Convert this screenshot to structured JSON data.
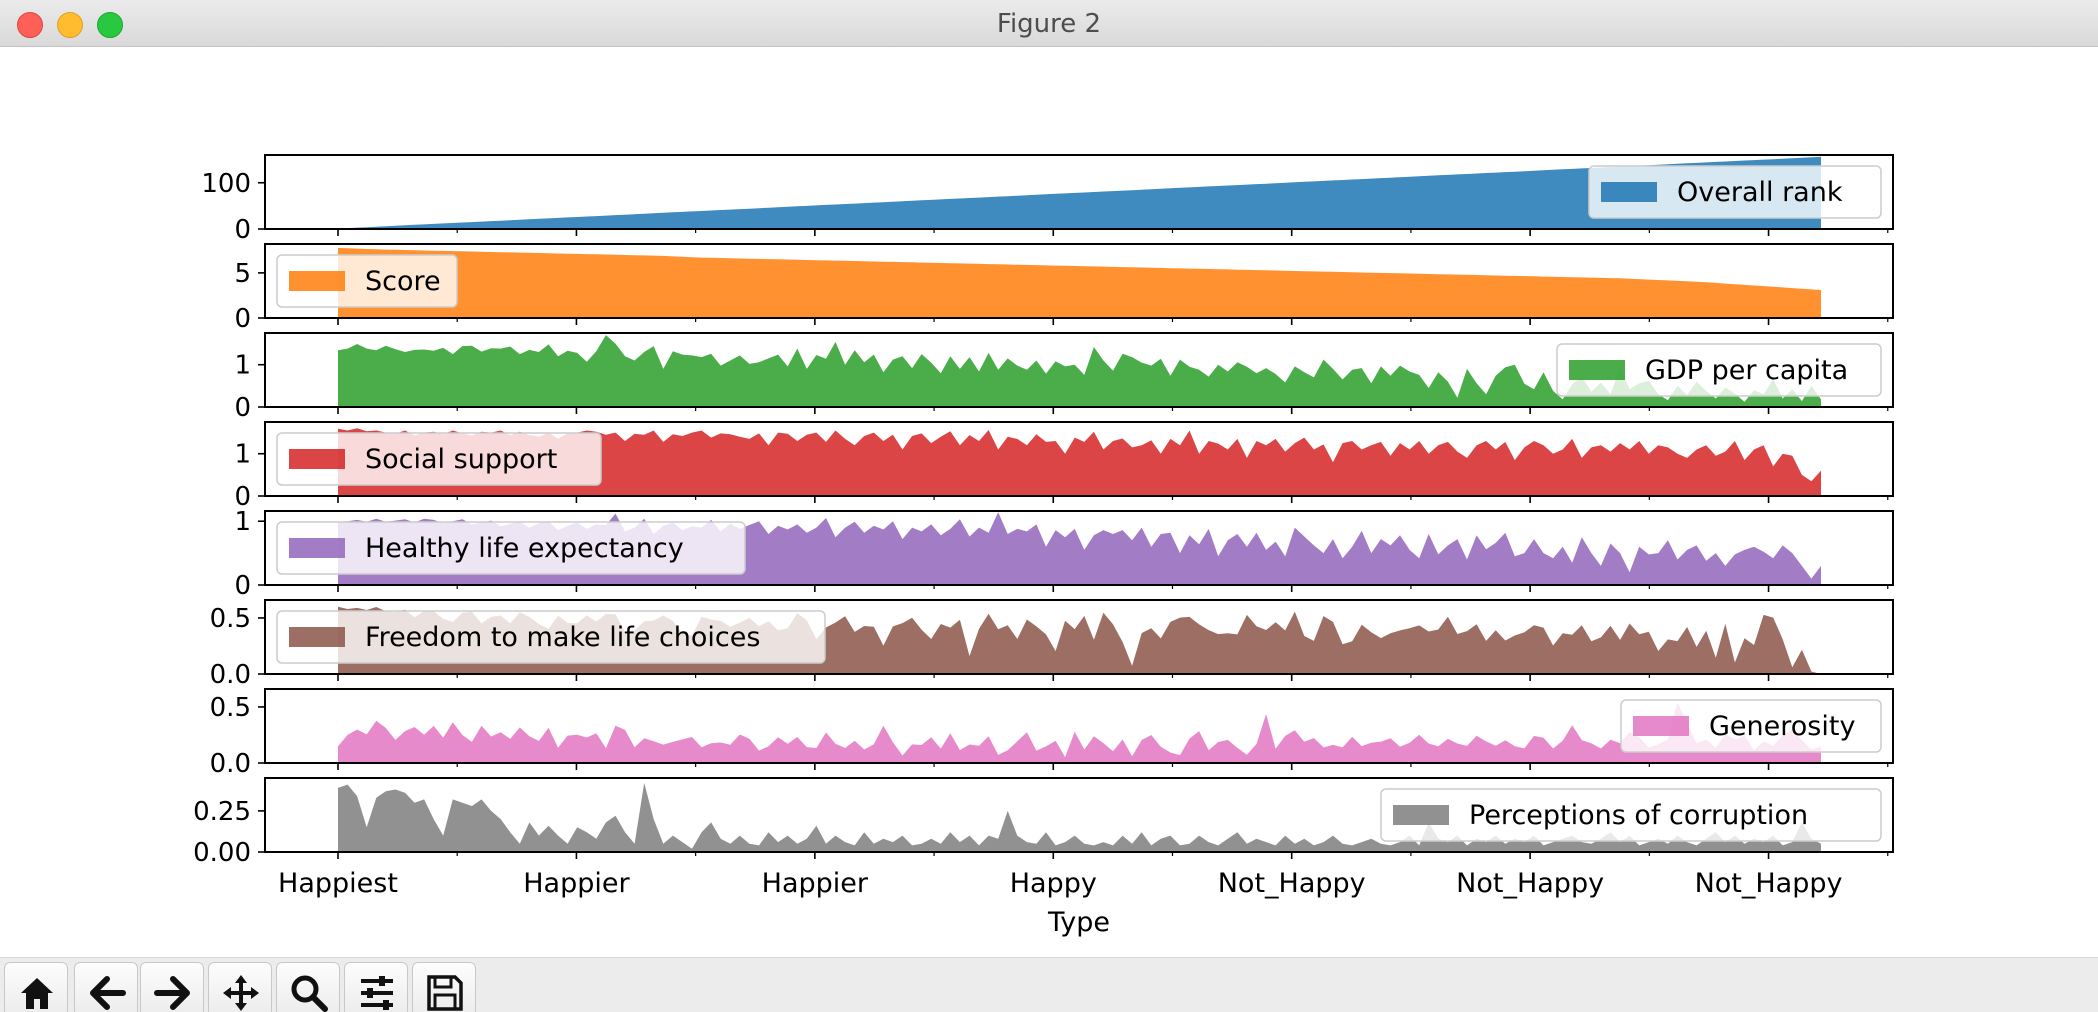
{
  "window": {
    "title": "Figure 2"
  },
  "toolbar": {
    "buttons": [
      {
        "name": "home-button",
        "icon": "home-icon"
      },
      {
        "name": "back-button",
        "icon": "arrow-left-icon"
      },
      {
        "name": "forward-button",
        "icon": "arrow-right-icon"
      },
      {
        "name": "pan-button",
        "icon": "move-icon"
      },
      {
        "name": "zoom-button",
        "icon": "magnifier-icon"
      },
      {
        "name": "configure-subplots-button",
        "icon": "sliders-icon"
      },
      {
        "name": "save-button",
        "icon": "floppy-disk-icon"
      }
    ]
  },
  "chart_data": {
    "type": "area",
    "xlabel": "Type",
    "x_tick_labels": [
      "Happiest",
      "Happier",
      "Happier",
      "Happy",
      "Not_Happy",
      "Not_Happy",
      "Not_Happy"
    ],
    "n_points": 156,
    "grid": false,
    "subplots": [
      {
        "name": "Overall rank",
        "color": "#1f77b4",
        "ylim": [
          0,
          160
        ],
        "yticks": [
          {
            "v": 0,
            "label": "0"
          },
          {
            "v": 100,
            "label": "100"
          }
        ],
        "legend": "right",
        "values": [
          1,
          32,
          63,
          94,
          125,
          156
        ]
      },
      {
        "name": "Score",
        "color": "#ff7f0e",
        "ylim": [
          0,
          8.2
        ],
        "yticks": [
          {
            "v": 0,
            "label": "0"
          },
          {
            "v": 5,
            "label": "5"
          }
        ],
        "legend": "left",
        "values": [
          7.77,
          7.6,
          7.5,
          7.4,
          7.3,
          7.2,
          7.1,
          7.0,
          6.9,
          6.7,
          6.6,
          6.5,
          6.4,
          6.3,
          6.2,
          6.1,
          6.0,
          5.9,
          5.8,
          5.7,
          5.6,
          5.5,
          5.4,
          5.3,
          5.2,
          5.1,
          5.0,
          4.9,
          4.8,
          4.7,
          4.6,
          4.5,
          4.4,
          4.2,
          4.0,
          3.7,
          3.4,
          3.1
        ]
      },
      {
        "name": "GDP per capita",
        "color": "#2ca02c",
        "ylim": [
          0,
          1.75
        ],
        "yticks": [
          {
            "v": 0,
            "label": "0"
          },
          {
            "v": 1,
            "label": "1"
          }
        ],
        "legend": "right",
        "values": [
          1.34,
          1.38,
          1.49,
          1.38,
          1.34,
          1.45,
          1.37,
          1.3,
          1.35,
          1.36,
          1.33,
          1.4,
          1.25,
          1.44,
          1.45,
          1.31,
          1.39,
          1.38,
          1.43,
          1.25,
          1.35,
          1.3,
          1.48,
          1.2,
          1.33,
          1.28,
          1.07,
          1.32,
          1.7,
          1.5,
          1.2,
          1.1,
          1.3,
          1.44,
          0.9,
          1.32,
          1.24,
          1.22,
          1.18,
          1.26,
          0.98,
          1.1,
          1.22,
          1.02,
          1.06,
          1.15,
          1.24,
          0.96,
          1.38,
          0.9,
          1.23,
          1.14,
          1.54,
          1.0,
          1.34,
          1.06,
          1.24,
          0.82,
          1.12,
          1.2,
          0.92,
          1.25,
          1.05,
          0.8,
          1.2,
          0.9,
          1.18,
          0.84,
          1.28,
          0.88,
          1.15,
          0.98,
          0.88,
          1.1,
          0.79,
          1.08,
          0.96,
          1.0,
          0.76,
          1.42,
          1.1,
          0.86,
          1.26,
          1.18,
          1.05,
          0.98,
          1.14,
          0.74,
          1.12,
          0.95,
          0.88,
          0.72,
          1.0,
          0.84,
          1.06,
          0.95,
          0.8,
          0.92,
          0.78,
          0.58,
          0.96,
          0.82,
          0.7,
          1.12,
          0.9,
          0.65,
          0.88,
          0.92,
          0.56,
          0.96,
          0.74,
          0.98,
          0.84,
          0.76,
          0.45,
          0.82,
          0.6,
          0.22,
          0.9,
          0.56,
          0.3,
          0.74,
          0.94,
          1.0,
          0.55,
          0.42,
          0.82,
          0.38,
          0.18,
          0.54,
          0.72,
          0.36,
          0.58,
          0.3,
          0.92,
          0.42,
          0.56,
          0.62,
          0.3,
          0.16,
          0.5,
          0.28,
          0.6,
          0.38,
          0.2,
          0.46,
          0.32,
          0.12,
          0.4,
          0.3,
          0.66,
          0.2,
          0.42,
          0.14,
          0.5,
          0.18
        ]
      },
      {
        "name": "Social support",
        "color": "#d62728",
        "ylim": [
          0,
          1.75
        ],
        "yticks": [
          {
            "v": 0,
            "label": "0"
          },
          {
            "v": 1,
            "label": "1"
          }
        ],
        "legend": "left",
        "values": [
          1.59,
          1.55,
          1.6,
          1.53,
          1.55,
          1.5,
          1.47,
          1.55,
          1.43,
          1.5,
          1.52,
          1.46,
          1.55,
          1.48,
          1.43,
          1.52,
          1.5,
          1.55,
          1.44,
          1.52,
          1.44,
          1.4,
          1.5,
          1.35,
          1.48,
          1.5,
          1.55,
          1.52,
          1.45,
          1.5,
          1.3,
          1.47,
          1.45,
          1.55,
          1.28,
          1.46,
          1.42,
          1.5,
          1.55,
          1.38,
          1.48,
          1.46,
          1.4,
          1.35,
          1.48,
          1.2,
          1.5,
          1.47,
          1.3,
          1.45,
          1.5,
          1.28,
          1.55,
          1.35,
          1.2,
          1.42,
          1.5,
          1.3,
          1.45,
          1.1,
          1.42,
          1.48,
          1.25,
          1.4,
          1.53,
          1.2,
          1.44,
          1.3,
          1.56,
          1.1,
          1.4,
          1.35,
          1.2,
          1.46,
          1.28,
          1.3,
          1.0,
          1.38,
          1.28,
          1.52,
          1.1,
          1.3,
          1.36,
          1.15,
          1.2,
          1.32,
          1.0,
          1.35,
          1.2,
          1.55,
          1.0,
          1.3,
          1.24,
          1.1,
          1.35,
          0.9,
          1.3,
          1.2,
          1.35,
          1.05,
          1.25,
          1.38,
          1.1,
          1.22,
          0.8,
          1.25,
          1.3,
          1.1,
          1.2,
          1.28,
          0.95,
          1.25,
          1.1,
          1.3,
          1.0,
          1.2,
          1.28,
          1.05,
          0.9,
          1.2,
          1.3,
          1.1,
          1.28,
          0.85,
          1.15,
          1.3,
          1.2,
          1.0,
          1.1,
          1.35,
          0.9,
          1.15,
          1.2,
          1.05,
          1.25,
          1.1,
          1.3,
          1.0,
          1.2,
          1.15,
          1.0,
          0.9,
          1.1,
          1.2,
          0.95,
          1.05,
          1.3,
          0.85,
          1.1,
          1.2,
          0.7,
          1.0,
          0.95,
          0.5,
          0.35,
          0.6
        ]
      },
      {
        "name": "Healthy life expectancy",
        "color": "#9467bd",
        "ylim": [
          0,
          1.16
        ],
        "yticks": [
          {
            "v": 0,
            "label": "0"
          },
          {
            "v": 1,
            "label": "1"
          }
        ],
        "legend": "left",
        "values": [
          0.99,
          1.0,
          1.02,
          0.99,
          1.04,
          0.99,
          1.01,
          1.03,
          0.98,
          1.04,
          1.02,
          0.97,
          1.0,
          1.03,
          0.95,
          0.98,
          1.01,
          0.92,
          0.96,
          0.99,
          0.9,
          0.97,
          1.0,
          0.86,
          0.93,
          0.98,
          0.88,
          0.95,
          0.94,
          1.12,
          0.84,
          0.9,
          1.04,
          0.8,
          0.93,
          0.98,
          0.86,
          0.92,
          0.9,
          1.02,
          0.84,
          0.96,
          0.88,
          0.94,
          1.0,
          0.8,
          0.93,
          0.87,
          0.95,
          0.82,
          0.9,
          1.05,
          0.75,
          0.9,
          0.99,
          0.82,
          0.93,
          0.87,
          1.0,
          0.72,
          0.9,
          0.84,
          0.95,
          0.78,
          0.88,
          1.03,
          0.76,
          0.9,
          0.82,
          1.14,
          0.8,
          0.88,
          0.84,
          0.95,
          0.6,
          0.86,
          0.75,
          0.88,
          0.55,
          0.78,
          0.86,
          0.8,
          0.86,
          0.7,
          0.9,
          0.6,
          0.8,
          0.82,
          0.5,
          0.78,
          0.64,
          0.88,
          0.45,
          0.7,
          0.8,
          0.6,
          0.82,
          0.55,
          0.68,
          0.45,
          0.9,
          0.76,
          0.62,
          0.5,
          0.72,
          0.42,
          0.6,
          0.85,
          0.5,
          0.72,
          0.62,
          0.78,
          0.55,
          0.42,
          0.8,
          0.48,
          0.62,
          0.72,
          0.4,
          0.78,
          0.56,
          0.66,
          0.82,
          0.45,
          0.5,
          0.72,
          0.5,
          0.42,
          0.6,
          0.35,
          0.75,
          0.5,
          0.3,
          0.65,
          0.5,
          0.2,
          0.6,
          0.48,
          0.5,
          0.7,
          0.4,
          0.55,
          0.62,
          0.38,
          0.5,
          0.3,
          0.48,
          0.55,
          0.6,
          0.52,
          0.42,
          0.62,
          0.5,
          0.3,
          0.1,
          0.3
        ]
      },
      {
        "name": "Freedom to make life choices",
        "color": "#8c564b",
        "ylim": [
          0,
          0.66
        ],
        "yticks": [
          {
            "v": 0,
            "label": "0.0"
          },
          {
            "v": 0.5,
            "label": "0.5"
          }
        ],
        "legend": "left",
        "values": [
          0.6,
          0.58,
          0.59,
          0.57,
          0.6,
          0.56,
          0.55,
          0.58,
          0.5,
          0.56,
          0.57,
          0.5,
          0.45,
          0.54,
          0.58,
          0.44,
          0.5,
          0.55,
          0.42,
          0.56,
          0.52,
          0.48,
          0.35,
          0.54,
          0.48,
          0.4,
          0.56,
          0.45,
          0.5,
          0.6,
          0.42,
          0.3,
          0.52,
          0.4,
          0.58,
          0.45,
          0.5,
          0.2,
          0.5,
          0.52,
          0.45,
          0.5,
          0.35,
          0.55,
          0.46,
          0.4,
          0.52,
          0.3,
          0.48,
          0.58,
          0.42,
          0.25,
          0.5,
          0.44,
          0.55,
          0.3,
          0.48,
          0.4,
          0.2,
          0.5,
          0.44,
          0.52,
          0.36,
          0.3,
          0.48,
          0.4,
          0.5,
          0.1,
          0.45,
          0.55,
          0.38,
          0.44,
          0.3,
          0.5,
          0.42,
          0.35,
          0.2,
          0.48,
          0.4,
          0.52,
          0.3,
          0.55,
          0.45,
          0.3,
          0.05,
          0.36,
          0.42,
          0.3,
          0.46,
          0.5,
          0.52,
          0.45,
          0.4,
          0.35,
          0.38,
          0.3,
          0.55,
          0.45,
          0.35,
          0.52,
          0.3,
          0.62,
          0.4,
          0.2,
          0.5,
          0.55,
          0.3,
          0.2,
          0.45,
          0.42,
          0.3,
          0.35,
          0.38,
          0.4,
          0.42,
          0.45,
          0.3,
          0.5,
          0.52,
          0.2,
          0.55,
          0.35,
          0.25,
          0.5,
          0.15,
          0.48,
          0.3,
          0.52,
          0.35,
          0.2,
          0.45,
          0.3,
          0.5,
          0.2,
          0.38,
          0.45,
          0.25,
          0.52,
          0.3,
          0.4,
          0.15,
          0.35,
          0.28,
          0.45,
          0.2,
          0.42,
          0.1,
          0.5,
          0.05,
          0.35,
          0.25,
          0.55,
          0.5,
          0.3,
          0.05,
          0.22,
          0.02,
          0.0
        ]
      },
      {
        "name": "Generosity",
        "color": "#e377c2",
        "ylim": [
          0,
          0.66
        ],
        "yticks": [
          {
            "v": 0,
            "label": "0.0"
          },
          {
            "v": 0.5,
            "label": "0.5"
          }
        ],
        "legend": "right",
        "values": [
          0.15,
          0.25,
          0.3,
          0.25,
          0.38,
          0.32,
          0.2,
          0.28,
          0.33,
          0.24,
          0.35,
          0.2,
          0.38,
          0.27,
          0.15,
          0.36,
          0.22,
          0.3,
          0.18,
          0.33,
          0.28,
          0.12,
          0.4,
          0.1,
          0.22,
          0.3,
          0.15,
          0.38,
          0.05,
          0.28,
          0.42,
          0.1,
          0.2,
          0.25,
          0.12,
          0.22,
          0.15,
          0.28,
          0.18,
          0.1,
          0.25,
          0.12,
          0.2,
          0.3,
          0.15,
          0.08,
          0.2,
          0.25,
          0.12,
          0.3,
          0.05,
          0.18,
          0.32,
          0.1,
          0.15,
          0.22,
          0.08,
          0.2,
          0.38,
          0.12,
          0.05,
          0.2,
          0.15,
          0.25,
          0.1,
          0.3,
          0.08,
          0.18,
          0.15,
          0.25,
          0.05,
          0.12,
          0.2,
          0.28,
          0.1,
          0.15,
          0.2,
          0.05,
          0.28,
          0.12,
          0.24,
          0.18,
          0.1,
          0.22,
          0.05,
          0.2,
          0.26,
          0.15,
          0.1,
          0.05,
          0.2,
          0.32,
          0.1,
          0.18,
          0.22,
          0.15,
          0.08,
          0.05,
          0.55,
          0.1,
          0.2,
          0.35,
          0.15,
          0.28,
          0.1,
          0.22,
          0.05,
          0.3,
          0.12,
          0.2,
          0.15,
          0.25,
          0.18,
          0.1,
          0.28,
          0.22,
          0.12,
          0.18,
          0.25,
          0.1,
          0.2,
          0.28,
          0.12,
          0.18,
          0.22,
          0.1,
          0.15,
          0.3,
          0.18,
          0.1,
          0.25,
          0.38,
          0.12,
          0.2,
          0.1,
          0.25,
          0.15,
          0.32,
          0.2,
          0.12,
          0.18,
          0.22,
          0.62,
          0.3,
          0.15,
          0.22,
          0.12,
          0.28,
          0.2,
          0.25,
          0.1,
          0.2,
          0.15,
          0.25,
          0.3,
          0.2,
          0.12,
          0.15
        ]
      },
      {
        "name": "Perceptions of corruption",
        "color": "#7f7f7f",
        "ylim": [
          0,
          0.45
        ],
        "yticks": [
          {
            "v": 0,
            "label": "0.00"
          },
          {
            "v": 0.25,
            "label": "0.25"
          }
        ],
        "legend": "right",
        "values": [
          0.39,
          0.41,
          0.34,
          0.15,
          0.33,
          0.37,
          0.38,
          0.36,
          0.3,
          0.32,
          0.2,
          0.1,
          0.32,
          0.3,
          0.28,
          0.32,
          0.25,
          0.2,
          0.12,
          0.05,
          0.18,
          0.1,
          0.16,
          0.1,
          0.05,
          0.15,
          0.12,
          0.08,
          0.18,
          0.22,
          0.12,
          0.05,
          0.42,
          0.2,
          0.05,
          0.1,
          0.06,
          0.02,
          0.12,
          0.18,
          0.08,
          0.05,
          0.1,
          0.05,
          0.04,
          0.12,
          0.06,
          0.1,
          0.05,
          0.08,
          0.16,
          0.05,
          0.1,
          0.06,
          0.04,
          0.12,
          0.05,
          0.08,
          0.06,
          0.1,
          0.04,
          0.05,
          0.08,
          0.05,
          0.12,
          0.06,
          0.1,
          0.04,
          0.1,
          0.08,
          0.25,
          0.1,
          0.06,
          0.05,
          0.12,
          0.04,
          0.06,
          0.1,
          0.05,
          0.04,
          0.06,
          0.04,
          0.1,
          0.05,
          0.12,
          0.04,
          0.08,
          0.1,
          0.04,
          0.05,
          0.1,
          0.06,
          0.04,
          0.08,
          0.12,
          0.05,
          0.08,
          0.06,
          0.04,
          0.1,
          0.05,
          0.08,
          0.04,
          0.06,
          0.1,
          0.05,
          0.04,
          0.06,
          0.08,
          0.05,
          0.04,
          0.06,
          0.1,
          0.04,
          0.18,
          0.08,
          0.06,
          0.1,
          0.04,
          0.08,
          0.06,
          0.1,
          0.05,
          0.08,
          0.06,
          0.1,
          0.04,
          0.06,
          0.08,
          0.1,
          0.06,
          0.05,
          0.08,
          0.12,
          0.06,
          0.1,
          0.04,
          0.06,
          0.08,
          0.05,
          0.1,
          0.06,
          0.04,
          0.08,
          0.12,
          0.06,
          0.1,
          0.05,
          0.08,
          0.06,
          0.1,
          0.04,
          0.06,
          0.18,
          0.08,
          0.05
        ]
      }
    ]
  }
}
